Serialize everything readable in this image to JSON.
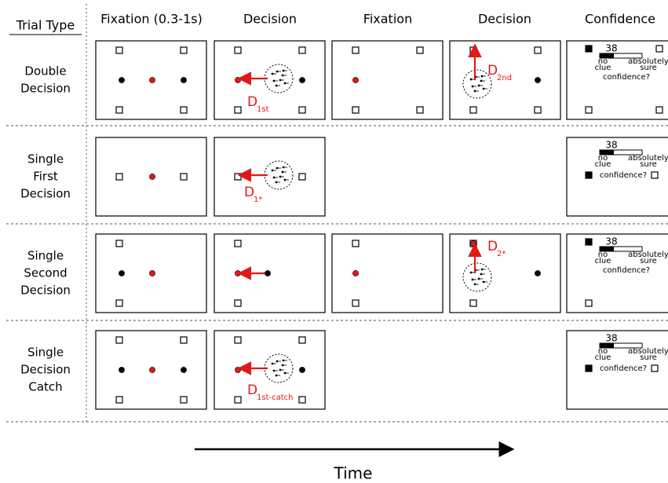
{
  "header": {
    "trial_type": "Trial Type",
    "columns": [
      "Fixation (0.3-1s)",
      "Decision",
      "Fixation",
      "Decision",
      "Confidence"
    ]
  },
  "rows": [
    {
      "label": [
        "Double",
        "Decision"
      ],
      "d_labels": [
        {
          "letter": "D",
          "sub": "1st"
        },
        {
          "letter": "D",
          "sub": "2nd"
        }
      ],
      "confidence": {
        "rating": "38",
        "low": [
          "no",
          "clue"
        ],
        "high": [
          "absolutely",
          "sure"
        ],
        "question": "confidence?"
      }
    },
    {
      "label": [
        "Single",
        "First",
        "Decision"
      ],
      "d_labels": [
        {
          "letter": "D",
          "sub": "1*"
        }
      ],
      "confidence": {
        "rating": "38",
        "low": [
          "no",
          "clue"
        ],
        "high": [
          "absolutely",
          "sure"
        ],
        "question": "confidence?"
      }
    },
    {
      "label": [
        "Single",
        "Second",
        "Decision"
      ],
      "d_labels": [
        {
          "letter": "D",
          "sub": "2*"
        }
      ],
      "confidence": {
        "rating": "38",
        "low": [
          "no",
          "clue"
        ],
        "high": [
          "absolutely",
          "sure"
        ],
        "question": "confidence?"
      }
    },
    {
      "label": [
        "Single",
        "Decision",
        "Catch"
      ],
      "d_labels": [
        {
          "letter": "D",
          "sub": "1st-catch"
        }
      ],
      "confidence": {
        "rating": "38",
        "low": [
          "no",
          "clue"
        ],
        "high": [
          "absolutely",
          "sure"
        ],
        "question": "confidence?"
      }
    }
  ],
  "time_label": "Time"
}
